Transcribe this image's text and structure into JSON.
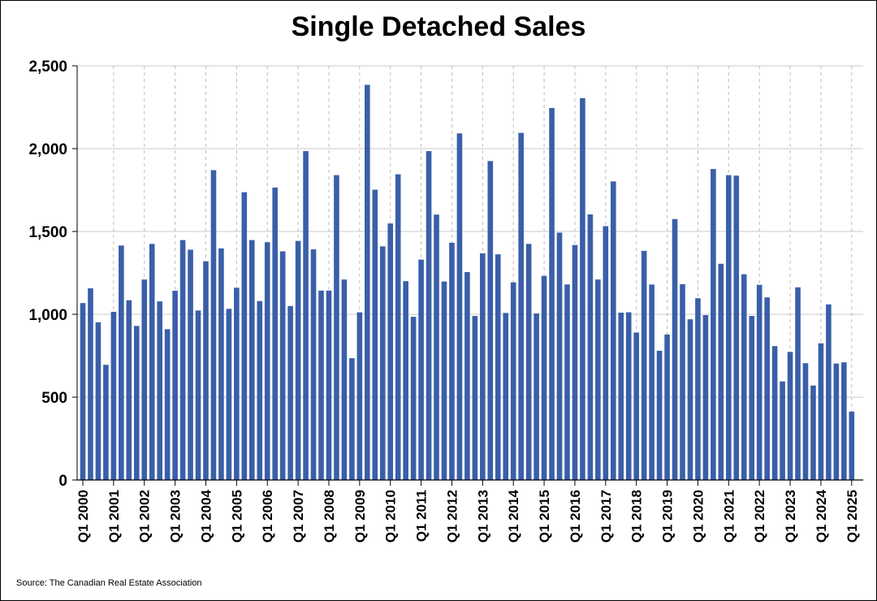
{
  "chart_data": {
    "type": "bar",
    "title": "Single Detached Sales",
    "source": "Source: The Canadian Real Estate Association",
    "xlabel": "",
    "ylabel": "",
    "ylim": [
      0,
      2500
    ],
    "yticks": [
      0,
      500,
      1000,
      1500,
      2000,
      2500
    ],
    "ytick_labels": [
      "0",
      "500",
      "1,000",
      "1,500",
      "2,000",
      "2,500"
    ],
    "xtick_labels": [
      "Q1 2000",
      "Q1 2001",
      "Q1 2002",
      "Q1 2003",
      "Q1 2004",
      "Q1 2005",
      "Q1 2006",
      "Q1 2007",
      "Q1 2008",
      "Q1 2009",
      "Q1 2010",
      "Q1 2011",
      "Q1 2012",
      "Q1 2013",
      "Q1 2014",
      "Q1 2015",
      "Q1 2016",
      "Q1 2017",
      "Q1 2018",
      "Q1 2019",
      "Q1 2020",
      "Q1 2021",
      "Q1 2022",
      "Q1 2023",
      "Q1 2024",
      "Q1 2025"
    ],
    "grid": true,
    "bar_color": "#3a5fa8",
    "series": [
      {
        "values": [
          1068,
          1157,
          952,
          695,
          1015,
          1415,
          1085,
          930,
          1210,
          1425,
          1078,
          910,
          1142,
          1448,
          1390,
          1023,
          1320,
          1870,
          1398,
          1033,
          1160,
          1737,
          1448,
          1080,
          1435,
          1765,
          1380,
          1050,
          1443,
          1985,
          1392,
          1143,
          1143,
          1840,
          1210,
          735,
          1012,
          2385,
          1752,
          1410,
          1548,
          1845,
          1200,
          985,
          1330,
          1985,
          1602,
          1198,
          1432,
          2092,
          1255,
          990,
          1368,
          1925,
          1362,
          1008,
          1193,
          2095,
          1425,
          1005,
          1232,
          2245,
          1493,
          1180,
          1418,
          2305,
          1603,
          1210,
          1532,
          1802,
          1010,
          1012,
          890,
          1383,
          1180,
          780,
          878,
          1575,
          1182,
          970,
          1097,
          995,
          1877,
          1305,
          1840,
          1837,
          1242,
          990,
          1178,
          1102,
          808,
          595,
          773,
          1163,
          705,
          570,
          825,
          1060,
          703,
          710,
          413
        ]
      }
    ]
  }
}
